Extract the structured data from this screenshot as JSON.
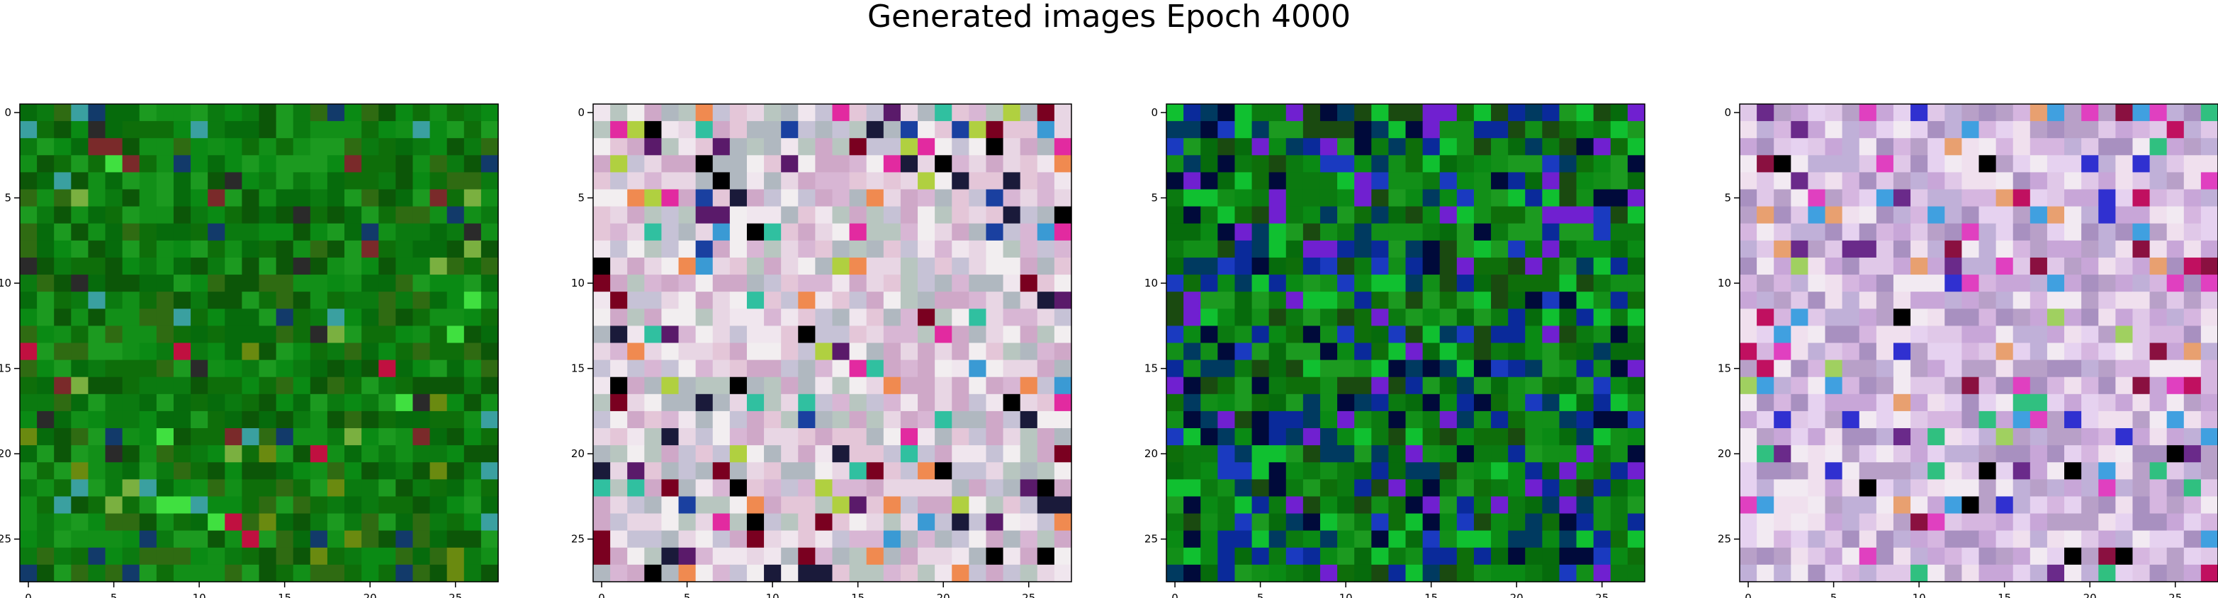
{
  "title": "Generated images Epoch 4000",
  "chart_data": [
    {
      "type": "heatmap",
      "title": "",
      "xlabel": "",
      "ylabel": "",
      "xlim": [
        -0.5,
        27.5
      ],
      "ylim": [
        27.5,
        -0.5
      ],
      "x_ticks": [
        "0",
        "5",
        "10",
        "15",
        "20",
        "25"
      ],
      "y_ticks": [
        "0",
        "5",
        "10",
        "15",
        "20",
        "25"
      ],
      "grid": false,
      "palette": [
        "#0b7a10",
        "#0a8a14",
        "#066b0c",
        "#128f18",
        "#0e6e0a",
        "#1c9a20",
        "#2f6b12",
        "#0c5608"
      ],
      "accent": [
        "#7a2a2a",
        "#123a6a",
        "#c01040",
        "#6a8a10",
        "#2a2a2a",
        "#3aa0a0",
        "#40e040",
        "#7ab040"
      ],
      "accent_rate": 0.12,
      "seed": 11
    },
    {
      "type": "heatmap",
      "title": "",
      "xlabel": "",
      "ylabel": "",
      "xlim": [
        -0.5,
        27.5
      ],
      "ylim": [
        27.5,
        -0.5
      ],
      "x_ticks": [
        "0",
        "5",
        "10",
        "15",
        "20",
        "25"
      ],
      "y_ticks": [
        "0",
        "5",
        "10",
        "15",
        "20",
        "25"
      ],
      "grid": false,
      "palette": [
        "#e8d6e4",
        "#d8b6d4",
        "#c6c2d6",
        "#f0e6ee",
        "#b8c6c0",
        "#e4c6d8",
        "#cfa8c8",
        "#f2eef0",
        "#b0b8c0"
      ],
      "accent": [
        "#000000",
        "#1a1a3a",
        "#3a9ad4",
        "#e22aa0",
        "#7a0020",
        "#30c0a0",
        "#b0d040",
        "#f08a50",
        "#5a1a6a",
        "#1a40a0"
      ],
      "accent_rate": 0.18,
      "seed": 23
    },
    {
      "type": "heatmap",
      "title": "",
      "xlabel": "",
      "ylabel": "",
      "xlim": [
        -0.5,
        27.5
      ],
      "ylim": [
        27.5,
        -0.5
      ],
      "x_ticks": [
        "0",
        "5",
        "10",
        "15",
        "20",
        "25"
      ],
      "y_ticks": [
        "0",
        "5",
        "10",
        "15",
        "20",
        "25"
      ],
      "grid": false,
      "palette": [
        "#0b7a10",
        "#0a8a14",
        "#066b0c",
        "#128f18",
        "#0e6e0a",
        "#1c9a20"
      ],
      "accent": [
        "#0a2a9a",
        "#1a3ac0",
        "#003a60",
        "#000a3a",
        "#10c030",
        "#7020d0",
        "#1a4a10"
      ],
      "accent_rate": 0.5,
      "seed": 37
    },
    {
      "type": "heatmap",
      "title": "",
      "xlabel": "",
      "ylabel": "",
      "xlim": [
        -0.5,
        27.5
      ],
      "ylim": [
        27.5,
        -0.5
      ],
      "x_ticks": [
        "0",
        "5",
        "10",
        "15",
        "20",
        "25"
      ],
      "y_ticks": [
        "0",
        "5",
        "10",
        "15",
        "20",
        "25"
      ],
      "grid": false,
      "palette": [
        "#e0c8e8",
        "#c8a6d8",
        "#b8a0c8",
        "#f0e0ee",
        "#d6b6e0",
        "#e6d2f0",
        "#c0b0d8",
        "#a890c0",
        "#f2eaf2"
      ],
      "accent": [
        "#000000",
        "#8a1040",
        "#e040c0",
        "#3030d0",
        "#30c080",
        "#e8a070",
        "#6a2a8a",
        "#40a0e0",
        "#a0d060",
        "#c01060"
      ],
      "accent_rate": 0.16,
      "seed": 53
    }
  ]
}
